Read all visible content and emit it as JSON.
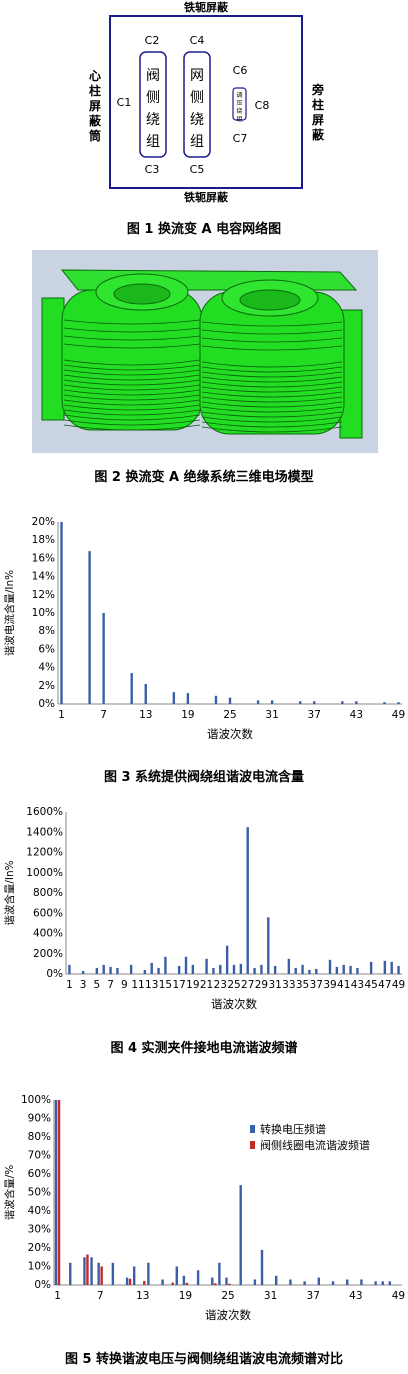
{
  "fig1": {
    "caption": "图 1  换流变 A 电容网络图",
    "labels": {
      "top": "铁轭屏蔽",
      "bottom": "铁轭屏蔽",
      "left": "心柱屏蔽筒",
      "right": "旁柱屏蔽",
      "c1": "C1",
      "c2": "C2",
      "c3": "C3",
      "c4": "C4",
      "c5": "C5",
      "c6": "C6",
      "c7": "C7",
      "c8": "C8",
      "valve": "阀侧绕组",
      "grid": "网侧绕组",
      "reg": "调压绕组"
    }
  },
  "fig2": {
    "caption": "图 2  换流变 A 绝缘系统三维电场模型",
    "colors": {
      "model": "#22dd22",
      "bg": "#c9d3e2"
    }
  },
  "chart_data": [
    {
      "type": "bar",
      "caption": "图 3  系统提供阀绕组谐波电流含量",
      "xlabel": "谐波次数",
      "ylabel": "谐波电流含量/In%",
      "ylim": [
        0,
        20
      ],
      "yticks": [
        "0%",
        "2%",
        "4%",
        "6%",
        "8%",
        "10%",
        "12%",
        "14%",
        "16%",
        "18%",
        "20%"
      ],
      "xtick_labels": [
        "1",
        "7",
        "13",
        "19",
        "25",
        "31",
        "37",
        "43",
        "49"
      ],
      "orders": [
        1,
        5,
        7,
        11,
        13,
        17,
        19,
        23,
        25,
        29,
        31,
        35,
        37,
        41,
        43,
        47,
        49
      ],
      "values": [
        20,
        16.8,
        10,
        3.4,
        2.2,
        1.3,
        1.2,
        0.9,
        0.7,
        0.4,
        0.4,
        0.3,
        0.3,
        0.3,
        0.3,
        0.2,
        0.2
      ],
      "color": "#3b5ea8"
    },
    {
      "type": "bar",
      "caption": "图 4  实测夹件接地电流谐波频谱",
      "xlabel": "谐波次数",
      "ylabel": "谐波含量/In%",
      "ylim": [
        0,
        1600
      ],
      "yticks": [
        "0%",
        "200%",
        "400%",
        "600%",
        "800%",
        "1000%",
        "1200%",
        "1400%",
        "1600%"
      ],
      "xtick_labels": [
        "1",
        "3",
        "5",
        "7",
        "9",
        "11",
        "13",
        "15",
        "17",
        "19",
        "21",
        "23",
        "25",
        "27",
        "29",
        "31",
        "33",
        "35",
        "37",
        "39",
        "41",
        "43",
        "45",
        "47",
        "49"
      ],
      "orders": [
        1,
        3,
        5,
        6,
        7,
        8,
        10,
        12,
        13,
        14,
        15,
        17,
        18,
        19,
        21,
        22,
        23,
        24,
        25,
        26,
        27,
        28,
        29,
        30,
        31,
        33,
        34,
        35,
        36,
        37,
        39,
        40,
        41,
        42,
        43,
        45,
        47,
        48,
        49
      ],
      "values": [
        90,
        30,
        60,
        90,
        70,
        60,
        90,
        40,
        110,
        60,
        170,
        80,
        170,
        90,
        150,
        60,
        90,
        280,
        90,
        100,
        1450,
        60,
        90,
        560,
        80,
        150,
        60,
        90,
        40,
        50,
        140,
        70,
        90,
        80,
        60,
        120,
        130,
        120,
        80
      ],
      "color": "#3b5ea8"
    },
    {
      "type": "bar",
      "caption": "图 5  转换谐波电压与阀侧绕组谐波电流频谱对比",
      "xlabel": "谐波次数",
      "ylabel": "谐波含量/%",
      "ylim": [
        0,
        100
      ],
      "yticks": [
        "0%",
        "10%",
        "20%",
        "30%",
        "40%",
        "50%",
        "60%",
        "70%",
        "80%",
        "90%",
        "100%"
      ],
      "xtick_labels": [
        "1",
        "7",
        "13",
        "19",
        "25",
        "31",
        "37",
        "43",
        "49"
      ],
      "legend_position": "top-right",
      "series": [
        {
          "name": "转换电压频谱",
          "color": "#3b5ea8",
          "orders": [
            1,
            3,
            5,
            6,
            7,
            9,
            11,
            12,
            14,
            16,
            18,
            19,
            21,
            23,
            24,
            25,
            27,
            29,
            30,
            32,
            34,
            36,
            38,
            40,
            42,
            44,
            46,
            47,
            48
          ],
          "values": [
            100,
            12,
            15,
            15,
            12,
            12,
            4,
            10,
            12,
            3,
            10,
            5,
            8,
            4,
            12,
            4,
            54,
            3,
            19,
            5,
            3,
            2,
            4,
            2,
            3,
            3,
            2,
            2,
            2
          ]
        },
        {
          "name": "阀侧线圈电流谐波频谱",
          "color": "#c02c2c",
          "orders": [
            1,
            5,
            7,
            11,
            13,
            17,
            19,
            23,
            25
          ],
          "values": [
            100,
            16.5,
            10,
            3.4,
            2.2,
            1.3,
            1.2,
            0.9,
            0.7
          ]
        }
      ]
    }
  ]
}
